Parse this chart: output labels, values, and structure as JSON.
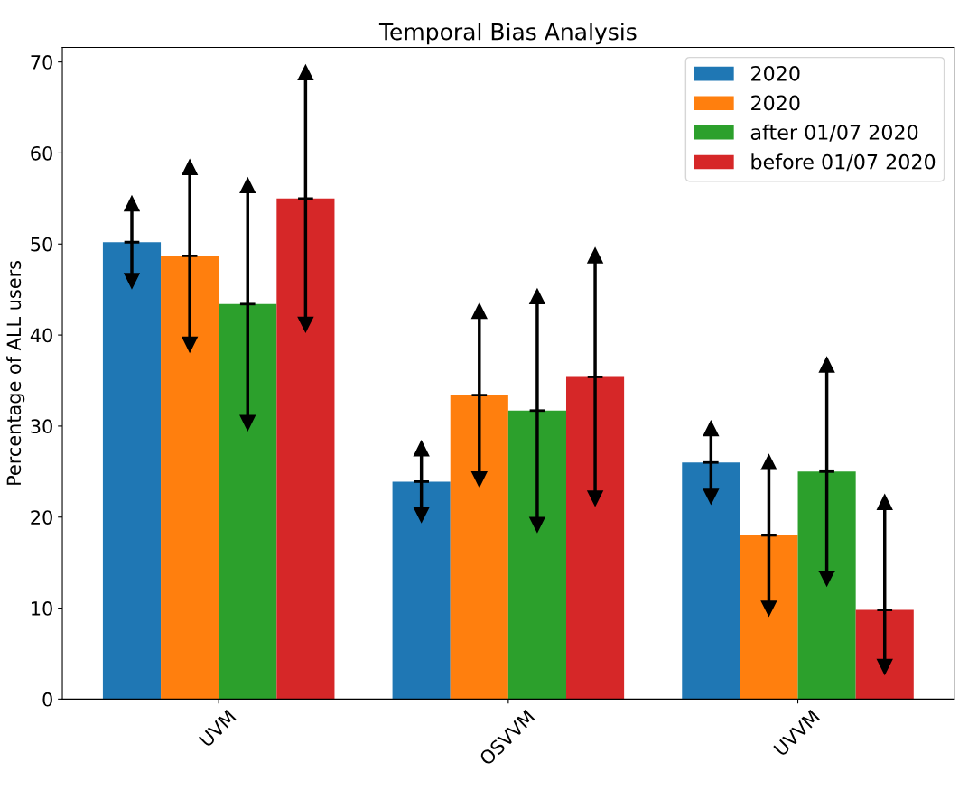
{
  "chart_data": {
    "type": "bar",
    "title": "Temporal Bias Analysis",
    "ylabel": "Percentage of ALL users",
    "categories": [
      "UVM",
      "OSVVM",
      "UVVM"
    ],
    "series": [
      {
        "name": "2020",
        "color": "#1f77b4",
        "values": [
          50.2,
          23.9,
          26.0
        ],
        "errors": [
          4.2,
          3.6,
          3.7
        ]
      },
      {
        "name": "2020",
        "color": "#ff7f0e",
        "values": [
          48.7,
          33.4,
          18.0
        ],
        "errors": [
          9.7,
          9.2,
          8.0
        ]
      },
      {
        "name": "after 01/07 2020",
        "color": "#2ca02c",
        "values": [
          43.4,
          31.7,
          25.0
        ],
        "errors": [
          13.0,
          12.5,
          11.7
        ]
      },
      {
        "name": "before 01/07 2020",
        "color": "#d62728",
        "values": [
          55.0,
          35.4,
          9.8
        ],
        "errors": [
          13.8,
          13.3,
          [
            3.6,
            21.6
          ]
        ]
      }
    ],
    "ylim": [
      0,
      71.6
    ],
    "yticks": [
      0,
      10,
      20,
      30,
      40,
      50,
      60,
      70
    ],
    "legend": "top right",
    "grid": false
  }
}
